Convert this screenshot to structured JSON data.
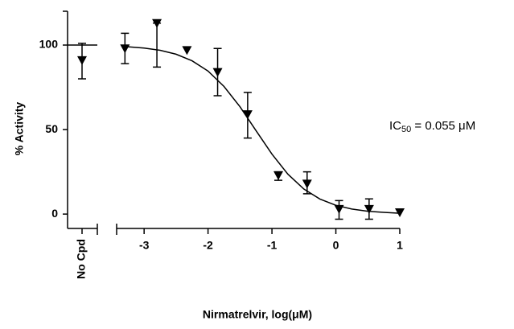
{
  "chart_data": {
    "type": "dose-response",
    "ylabel": "% Activity",
    "xlabel": "Nirmatrelvir, log(μM)",
    "annotation": {
      "text": "IC",
      "subscript": "50",
      "rest": " = 0.055 μM"
    },
    "ylim": [
      -8.5,
      120
    ],
    "yticks": [
      0,
      50,
      100
    ],
    "xlim": [
      -3.43,
      1
    ],
    "xticks": [
      -3,
      -2,
      -1,
      0,
      1
    ],
    "color": "#000000",
    "control": {
      "category": "No Cpd",
      "value": 91,
      "error_low": 80,
      "error_high": 101,
      "line_value": 100
    },
    "x": [
      -3.3,
      -2.8,
      -2.33,
      -1.85,
      -1.38,
      -0.9,
      -0.45,
      0.05,
      0.52,
      1.0
    ],
    "values": [
      98,
      113,
      97,
      84,
      59,
      23,
      18,
      3,
      3,
      1
    ],
    "error_low": [
      89,
      87,
      null,
      70,
      45,
      20,
      12,
      -3,
      -3,
      null
    ],
    "error_high": [
      107,
      113,
      null,
      98,
      72,
      25,
      25,
      8,
      9,
      null
    ],
    "fit": {
      "x": [
        -3.3,
        -3.0,
        -2.75,
        -2.5,
        -2.25,
        -2.0,
        -1.75,
        -1.5,
        -1.25,
        -1.0,
        -0.75,
        -0.5,
        -0.25,
        0,
        0.25,
        0.5,
        0.75,
        1.0
      ],
      "values": [
        99.1,
        98.2,
        96.9,
        94.6,
        90.7,
        84.6,
        75.5,
        63.5,
        49.4,
        35.5,
        23.6,
        14.8,
        8.9,
        5.2,
        3.0,
        1.7,
        1.0,
        0.5
      ]
    }
  }
}
